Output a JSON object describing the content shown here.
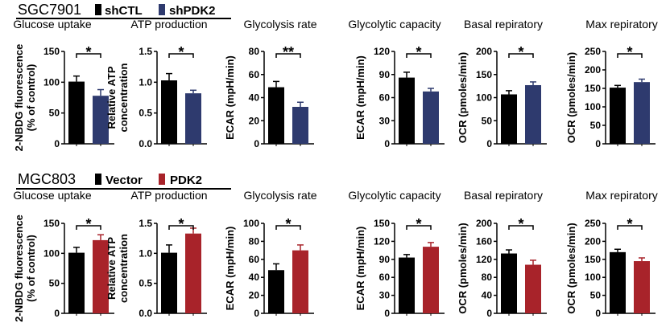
{
  "colors": {
    "control": "#000000",
    "shPDK2": "#2e3a6e",
    "PDK2": "#a8232a"
  },
  "chart_data": [
    {
      "type": "bar",
      "row": "SGC7901",
      "title": "Glucose uptake",
      "ylabel": [
        "2-NBDG fluorescence",
        "(% of control)"
      ],
      "ylim": [
        0,
        150
      ],
      "ticks": [
        "0",
        "50",
        "100",
        "150"
      ],
      "series": [
        {
          "name": "shCTL",
          "value": 101,
          "error": 9
        },
        {
          "name": "shPDK2",
          "value": 78,
          "error": 10
        }
      ],
      "significance": "*"
    },
    {
      "type": "bar",
      "row": "SGC7901",
      "title": "ATP production",
      "ylabel": [
        "Relative ATP",
        "concentration"
      ],
      "ylim": [
        0,
        1.5
      ],
      "ticks": [
        "0.0",
        "0.5",
        "1.0",
        "1.5"
      ],
      "series": [
        {
          "name": "shCTL",
          "value": 1.03,
          "error": 0.11
        },
        {
          "name": "shPDK2",
          "value": 0.82,
          "error": 0.05
        }
      ],
      "significance": "*"
    },
    {
      "type": "bar",
      "row": "SGC7901",
      "title": "Glycolysis rate",
      "ylabel": [
        "ECAR (mpH/min)"
      ],
      "ylim": [
        0,
        80
      ],
      "ticks": [
        "0",
        "20",
        "40",
        "60",
        "80"
      ],
      "series": [
        {
          "name": "shCTL",
          "value": 49,
          "error": 5
        },
        {
          "name": "shPDK2",
          "value": 32,
          "error": 4
        }
      ],
      "significance": "**"
    },
    {
      "type": "bar",
      "row": "SGC7901",
      "title": "Glycolytic capacity",
      "ylabel": [
        "ECAR (mpH/min)"
      ],
      "ylim": [
        0,
        120
      ],
      "ticks": [
        "0",
        "30",
        "60",
        "90",
        "120"
      ],
      "series": [
        {
          "name": "shCTL",
          "value": 86,
          "error": 7
        },
        {
          "name": "shPDK2",
          "value": 68,
          "error": 4
        }
      ],
      "significance": "*"
    },
    {
      "type": "bar",
      "row": "SGC7901",
      "title": "Basal repiratory",
      "ylabel": [
        "OCR (pmoles/min)"
      ],
      "ylim": [
        0,
        200
      ],
      "ticks": [
        "0",
        "50",
        "100",
        "150",
        "200"
      ],
      "series": [
        {
          "name": "shCTL",
          "value": 107,
          "error": 8
        },
        {
          "name": "shPDK2",
          "value": 127,
          "error": 7
        }
      ],
      "significance": "*"
    },
    {
      "type": "bar",
      "row": "SGC7901",
      "title": "Max repiratory",
      "ylabel": [
        "OCR (pmoles/min)"
      ],
      "ylim": [
        0,
        250
      ],
      "ticks": [
        "0",
        "50",
        "100",
        "150",
        "200",
        "250"
      ],
      "series": [
        {
          "name": "shCTL",
          "value": 152,
          "error": 6
        },
        {
          "name": "shPDK2",
          "value": 167,
          "error": 8
        }
      ],
      "significance": "*"
    },
    {
      "type": "bar",
      "row": "MGC803",
      "title": "Glucose uptake",
      "ylabel": [
        "2-NBDG fluorescence",
        "(% of control)"
      ],
      "ylim": [
        0,
        150
      ],
      "ticks": [
        "0",
        "50",
        "100",
        "150"
      ],
      "series": [
        {
          "name": "Vector",
          "value": 101,
          "error": 9
        },
        {
          "name": "PDK2",
          "value": 122,
          "error": 9
        }
      ],
      "significance": "*"
    },
    {
      "type": "bar",
      "row": "MGC803",
      "title": "ATP production",
      "ylabel": [
        "Relative ATP",
        "concentration"
      ],
      "ylim": [
        0,
        1.5
      ],
      "ticks": [
        "0.0",
        "0.5",
        "1.0",
        "1.5"
      ],
      "series": [
        {
          "name": "Vector",
          "value": 1.01,
          "error": 0.13
        },
        {
          "name": "PDK2",
          "value": 1.33,
          "error": 0.09
        }
      ],
      "significance": "*"
    },
    {
      "type": "bar",
      "row": "MGC803",
      "title": "Glycolysis rate",
      "ylabel": [
        "ECAR (mpH/min)"
      ],
      "ylim": [
        0,
        100
      ],
      "ticks": [
        "0",
        "20",
        "40",
        "60",
        "80",
        "100"
      ],
      "series": [
        {
          "name": "Vector",
          "value": 48,
          "error": 7
        },
        {
          "name": "PDK2",
          "value": 70,
          "error": 6
        }
      ],
      "significance": "*"
    },
    {
      "type": "bar",
      "row": "MGC803",
      "title": "Glycolytic capacity",
      "ylabel": [
        "ECAR (mpH/min)"
      ],
      "ylim": [
        0,
        150
      ],
      "ticks": [
        "0",
        "30",
        "60",
        "90",
        "120",
        "150"
      ],
      "series": [
        {
          "name": "Vector",
          "value": 93,
          "error": 5
        },
        {
          "name": "PDK2",
          "value": 111,
          "error": 7
        }
      ],
      "significance": "*"
    },
    {
      "type": "bar",
      "row": "MGC803",
      "title": "Basal repiratory",
      "ylabel": [
        "OCR (pmoles/min)"
      ],
      "ylim": [
        0,
        200
      ],
      "ticks": [
        "0",
        "40",
        "80",
        "120",
        "160",
        "200"
      ],
      "series": [
        {
          "name": "Vector",
          "value": 133,
          "error": 8
        },
        {
          "name": "PDK2",
          "value": 108,
          "error": 10
        }
      ],
      "significance": "*"
    },
    {
      "type": "bar",
      "row": "MGC803",
      "title": "Max repiratory",
      "ylabel": [
        "OCR (pmoles/min)"
      ],
      "ylim": [
        0,
        250
      ],
      "ticks": [
        "0",
        "50",
        "100",
        "150",
        "200",
        "250"
      ],
      "series": [
        {
          "name": "Vector",
          "value": 170,
          "error": 8
        },
        {
          "name": "PDK2",
          "value": 145,
          "error": 9
        }
      ],
      "significance": "*"
    }
  ],
  "rows": [
    {
      "cell_line": "SGC7901",
      "legend": [
        {
          "label": "shCTL",
          "color": "#000000"
        },
        {
          "label": "shPDK2",
          "color": "#2e3a6e"
        }
      ]
    },
    {
      "cell_line": "MGC803",
      "legend": [
        {
          "label": "Vector",
          "color": "#000000"
        },
        {
          "label": "PDK2",
          "color": "#a8232a"
        }
      ]
    }
  ]
}
